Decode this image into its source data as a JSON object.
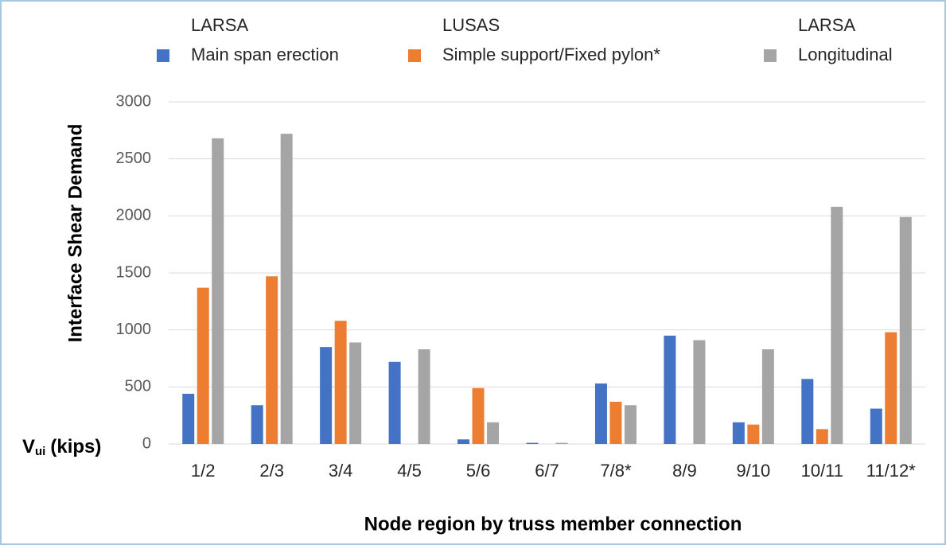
{
  "chart_data": {
    "type": "bar",
    "categories": [
      "1/2",
      "2/3",
      "3/4",
      "4/5",
      "5/6",
      "6/7",
      "7/8*",
      "8/9",
      "9/10",
      "10/11",
      "11/12*"
    ],
    "series": [
      {
        "name": "Main span erection",
        "software": "LARSA",
        "color": "#4472c4",
        "values": [
          440,
          340,
          850,
          720,
          40,
          10,
          530,
          950,
          190,
          570,
          310
        ]
      },
      {
        "name": "Simple support/Fixed pylon*",
        "software": "LUSAS",
        "color": "#ed7d31",
        "values": [
          1370,
          1470,
          1080,
          0,
          490,
          0,
          370,
          0,
          170,
          130,
          980
        ]
      },
      {
        "name": "Longitudinal",
        "software": "LARSA",
        "color": "#a5a5a5",
        "values": [
          2680,
          2720,
          890,
          830,
          190,
          10,
          340,
          910,
          830,
          2080,
          1990
        ]
      }
    ],
    "y_label": "Interface Shear Demand",
    "y_unit": {
      "symbol": "V",
      "subscript": "ui",
      "unit": "(kips)"
    },
    "x_label": "Node region by truss member connection",
    "ylim": [
      0,
      3000
    ],
    "yticks": [
      0,
      500,
      1000,
      1500,
      2000,
      2500,
      3000
    ],
    "grid": true,
    "legend": "top"
  }
}
